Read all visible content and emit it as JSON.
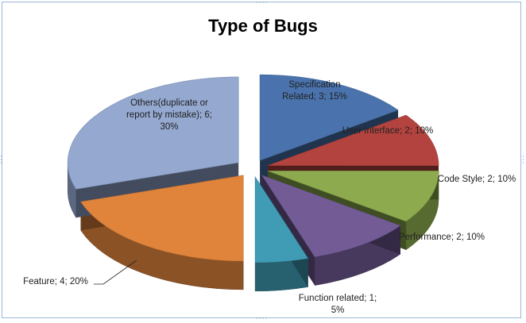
{
  "chart_data": {
    "type": "pie",
    "title": "Type of Bugs",
    "slices": [
      {
        "name": "Specification Related",
        "value": 3,
        "percent": "15%",
        "color": "#4a73ad",
        "label_lines": [
          "Specification",
          "Related; 3; 15%"
        ]
      },
      {
        "name": "User Interface",
        "value": 2,
        "percent": "10%",
        "color": "#b3433f",
        "label_lines": [
          "User Interface; 2; 10%"
        ]
      },
      {
        "name": "Code Style",
        "value": 2,
        "percent": "10%",
        "color": "#8dab4e",
        "label_lines": [
          "Code Style; 2; 10%"
        ]
      },
      {
        "name": "Performance",
        "value": 2,
        "percent": "10%",
        "color": "#735c96",
        "label_lines": [
          "Performance; 2; 10%"
        ]
      },
      {
        "name": "Function related",
        "value": 1,
        "percent": "5%",
        "color": "#3f9cb4",
        "label_lines": [
          "Function related; 1;",
          "5%"
        ]
      },
      {
        "name": "Feature",
        "value": 4,
        "percent": "20%",
        "color": "#e0843b",
        "label_lines": [
          "Feature; 4; 20%"
        ]
      },
      {
        "name": "Others(duplicate or report by mistake)",
        "value": 6,
        "percent": "30%",
        "color": "#94a8d0",
        "label_lines": [
          "Others(duplicate or",
          "report by mistake);  6;",
          "30%"
        ]
      }
    ],
    "exploded": true,
    "style": "3d",
    "legend": "none"
  }
}
